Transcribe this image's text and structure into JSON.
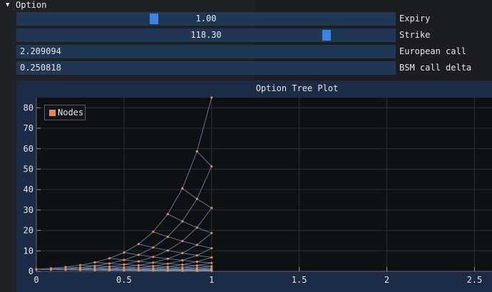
{
  "section": {
    "title": "Option"
  },
  "controls": {
    "expiry": {
      "label": "Expiry",
      "value": "1.00",
      "fraction": 0.36
    },
    "strike": {
      "label": "Strike",
      "value": "118.30",
      "fraction": 0.825
    },
    "european_call": {
      "label": "European call",
      "value": "2.209094"
    },
    "bsm_delta": {
      "label": "BSM call delta",
      "value": "0.250818"
    }
  },
  "colors": {
    "node": "#e48a58",
    "edge": "#7b93b8",
    "frame": "#1c2b43",
    "slider": "#3d85e0"
  },
  "chart_data": {
    "type": "scatter",
    "title": "Option Tree Plot",
    "legend": [
      {
        "name": "Nodes",
        "color": "#e48a58"
      }
    ],
    "legend_position": "top-left",
    "x_ticks": [
      "0",
      "0.5",
      "1",
      "1.5",
      "2",
      "2.5"
    ],
    "y_ticks": [
      "0",
      "10",
      "20",
      "30",
      "40",
      "50",
      "60",
      "70",
      "80"
    ],
    "xlim": [
      0,
      2.6
    ],
    "ylim": [
      0,
      85
    ],
    "tree": {
      "steps": 12,
      "t_max": 1.0,
      "s0": 1.0,
      "s_top": 85,
      "s_bottom": 0.2
    }
  }
}
